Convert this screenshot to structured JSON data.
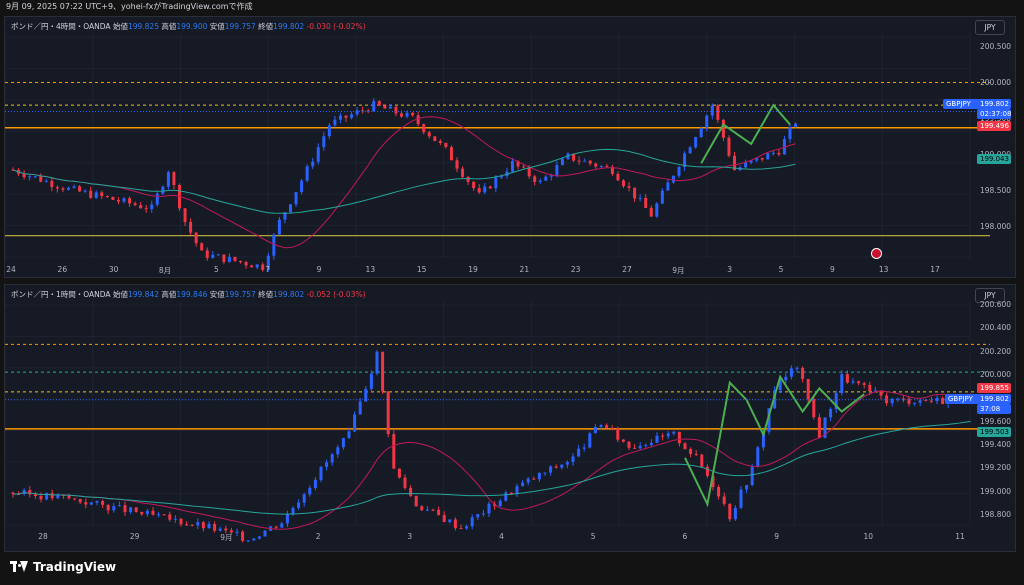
{
  "topbar": {
    "text": "9月 09, 2025 07:22 UTC+9、yohei-fxがTradingView.comで作成"
  },
  "panes": [
    {
      "title": "ポンド／円・4時間・OANDA",
      "o_label": "始値",
      "o": "199.825",
      "h_label": "高値",
      "h": "199.900",
      "l_label": "安値",
      "l": "199.757",
      "c_label": "終値",
      "c": "199.802",
      "chg": "-0.030 (-0.02%)",
      "currency": "JPY",
      "yticks": [
        "200.500",
        "200.000",
        "199.500",
        "199.000",
        "198.500",
        "198.000"
      ],
      "xticks": [
        "24",
        "26",
        "30",
        "8月",
        "5",
        "7",
        "9",
        "13",
        "15",
        "19",
        "21",
        "23",
        "27",
        "9月",
        "3",
        "5",
        "9",
        "13",
        "17"
      ],
      "symbol": "GBPJPY",
      "price": "199.802",
      "countdown": "02:37:08",
      "red_label": "199.496",
      "cyan_label": "199.043"
    },
    {
      "title": "ポンド／円・1時間・OANDA",
      "o_label": "始値",
      "o": "199.842",
      "h_label": "高値",
      "h": "199.846",
      "l_label": "安値",
      "l": "199.757",
      "c_label": "終値",
      "c": "199.802",
      "chg": "-0.052 (-0.03%)",
      "currency": "JPY",
      "yticks": [
        "200.600",
        "200.400",
        "200.200",
        "200.000",
        "199.800",
        "199.600",
        "199.400",
        "199.200",
        "199.000",
        "198.800"
      ],
      "xticks": [
        "28",
        "29",
        "9月",
        "2",
        "3",
        "4",
        "5",
        "6",
        "9",
        "10",
        "11"
      ],
      "symbol": "GBPJPY",
      "price": "199.802",
      "countdown": "37:08",
      "red_label": "199.855",
      "cyan_label": "199.503"
    }
  ],
  "footer": {
    "brand": "TradingView"
  },
  "colors": {
    "bg": "#131313",
    "pane": "#161a25",
    "up": "#2962ff",
    "down": "#f23645",
    "sma_fast": "#c2185b",
    "sma_slow": "#26a69a",
    "zz": "#4caf50",
    "orange": "#ff9800",
    "yellow": "#e6c229"
  },
  "chart_data": [
    {
      "type": "candlestick",
      "timeframe": "4h",
      "symbol": "GBPJPY",
      "ylim": [
        197.8,
        200.5
      ],
      "last": 199.802,
      "levels": [
        {
          "value": 200.25,
          "style": "orange-dash"
        },
        {
          "value": 199.9,
          "style": "yellow-dash"
        },
        {
          "value": 199.55,
          "style": "orange-solid"
        },
        {
          "value": 197.88,
          "style": "yellow-solid"
        }
      ]
    },
    {
      "type": "candlestick",
      "timeframe": "1h",
      "symbol": "GBPJPY",
      "ylim": [
        198.75,
        200.6
      ],
      "last": 199.802,
      "levels": [
        {
          "value": 200.28,
          "style": "orange-dash"
        },
        {
          "value": 200.04,
          "style": "teal-dash"
        },
        {
          "value": 199.87,
          "style": "yellow-dash"
        },
        {
          "value": 199.55,
          "style": "orange-solid"
        }
      ]
    }
  ]
}
